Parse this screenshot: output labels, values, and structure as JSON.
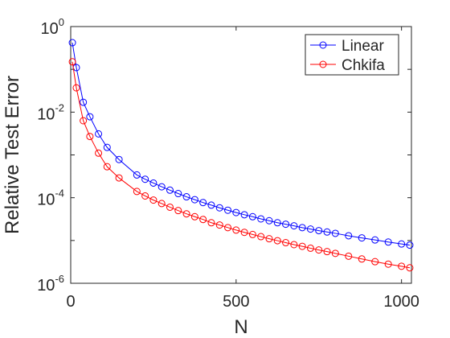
{
  "chart_data": {
    "type": "line",
    "title": "",
    "xlabel": "N",
    "ylabel": "Relative Test Error",
    "x_scale": "linear",
    "y_scale": "log",
    "xlim": [
      0,
      1030
    ],
    "ylim": [
      1e-06,
      1
    ],
    "x_ticks": [
      {
        "value": 0,
        "label": "0"
      },
      {
        "value": 500,
        "label": "500"
      },
      {
        "value": 1000,
        "label": "1000"
      }
    ],
    "y_ticks": [
      {
        "value": 1,
        "base": "10",
        "exp": "0"
      },
      {
        "value": 0.01,
        "base": "10",
        "exp": "-2"
      },
      {
        "value": 0.0001,
        "base": "10",
        "exp": "-4"
      },
      {
        "value": 1e-06,
        "base": "10",
        "exp": "-6"
      }
    ],
    "grid": false,
    "legend_position": "top-right",
    "x": [
      5,
      17,
      38,
      58,
      84,
      110,
      146,
      200,
      225,
      250,
      275,
      300,
      325,
      350,
      375,
      400,
      425,
      450,
      475,
      500,
      525,
      550,
      575,
      600,
      625,
      650,
      675,
      700,
      725,
      750,
      775,
      800,
      840,
      880,
      920,
      960,
      1000,
      1025
    ],
    "series": [
      {
        "name": "Linear",
        "color": "#0000ff",
        "values": [
          0.42,
          0.11,
          0.017,
          0.0078,
          0.0031,
          0.0015,
          0.00078,
          0.00034,
          0.00027,
          0.00022,
          0.00018,
          0.00015,
          0.000125,
          0.000105,
          9e-05,
          7.7e-05,
          6.7e-05,
          5.8e-05,
          5.1e-05,
          4.5e-05,
          4e-05,
          3.6e-05,
          3.2e-05,
          2.9e-05,
          2.6e-05,
          2.4e-05,
          2.2e-05,
          2e-05,
          1.85e-05,
          1.7e-05,
          1.58e-05,
          1.47e-05,
          1.29e-05,
          1.15e-05,
          1.03e-05,
          9.2e-06,
          8.3e-06,
          7.8e-06
        ]
      },
      {
        "name": "Chkifa",
        "color": "#ff0000",
        "values": [
          0.15,
          0.037,
          0.0063,
          0.0027,
          0.0011,
          0.00053,
          0.00029,
          0.00014,
          0.00011,
          8.8e-05,
          7.3e-05,
          6e-05,
          5e-05,
          4.2e-05,
          3.6e-05,
          3.1e-05,
          2.6e-05,
          2.3e-05,
          2e-05,
          1.75e-05,
          1.55e-05,
          1.38e-05,
          1.23e-05,
          1.1e-05,
          9.9e-06,
          8.9e-06,
          8e-06,
          7.3e-06,
          6.6e-06,
          6e-06,
          5.5e-06,
          5e-06,
          4.3e-06,
          3.7e-06,
          3.2e-06,
          2.8e-06,
          2.5e-06,
          2.3e-06
        ]
      }
    ]
  }
}
